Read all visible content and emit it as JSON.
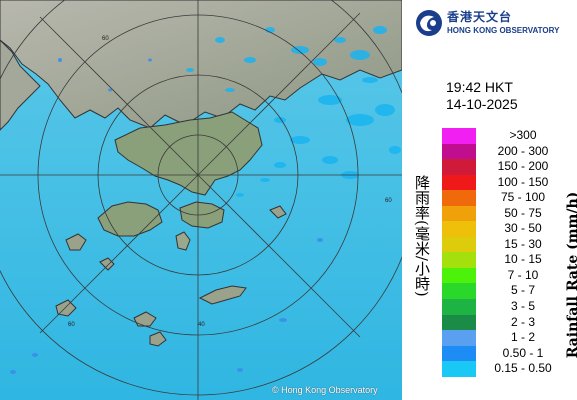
{
  "header": {
    "logo_zh": "香港天文台",
    "logo_en": "HONG KONG OBSERVATORY"
  },
  "timestamp": {
    "time": "19:42 HKT",
    "date": "14-10-2025"
  },
  "legend": {
    "title_en": "Rainfall Rate (mm/h)",
    "title_zh": "降雨率(毫米/小時)",
    "items": [
      {
        "label": ">300",
        "color": "#f21ff2"
      },
      {
        "label": "200 - 300",
        "color": "#c00e8f"
      },
      {
        "label": "150 - 200",
        "color": "#cf1a3a"
      },
      {
        "label": "100 - 150",
        "color": "#f01919"
      },
      {
        "label": "75 - 100",
        "color": "#f06a0c"
      },
      {
        "label": "50 - 75",
        "color": "#f0a10a"
      },
      {
        "label": "30 - 50",
        "color": "#eec00a"
      },
      {
        "label": "15 - 30",
        "color": "#dccc0c"
      },
      {
        "label": "10 - 15",
        "color": "#a4e00b"
      },
      {
        "label": "7 - 10",
        "color": "#4cf20a"
      },
      {
        "label": "5 - 7",
        "color": "#2ad82a"
      },
      {
        "label": "3 - 5",
        "color": "#1eb444"
      },
      {
        "label": "2 - 3",
        "color": "#1a8c48"
      },
      {
        "label": "1 - 2",
        "color": "#5aa0f0"
      },
      {
        "label": "0.50 - 1",
        "color": "#1e8cf5"
      },
      {
        "label": "0.15 - 0.50",
        "color": "#19c8f5"
      }
    ]
  },
  "map": {
    "credit": "© Hong Kong Observatory",
    "range_labels": [
      "60",
      "60",
      "40",
      "60"
    ],
    "sea_color": "#3ec0e6",
    "land_color": "#9aa28c"
  }
}
